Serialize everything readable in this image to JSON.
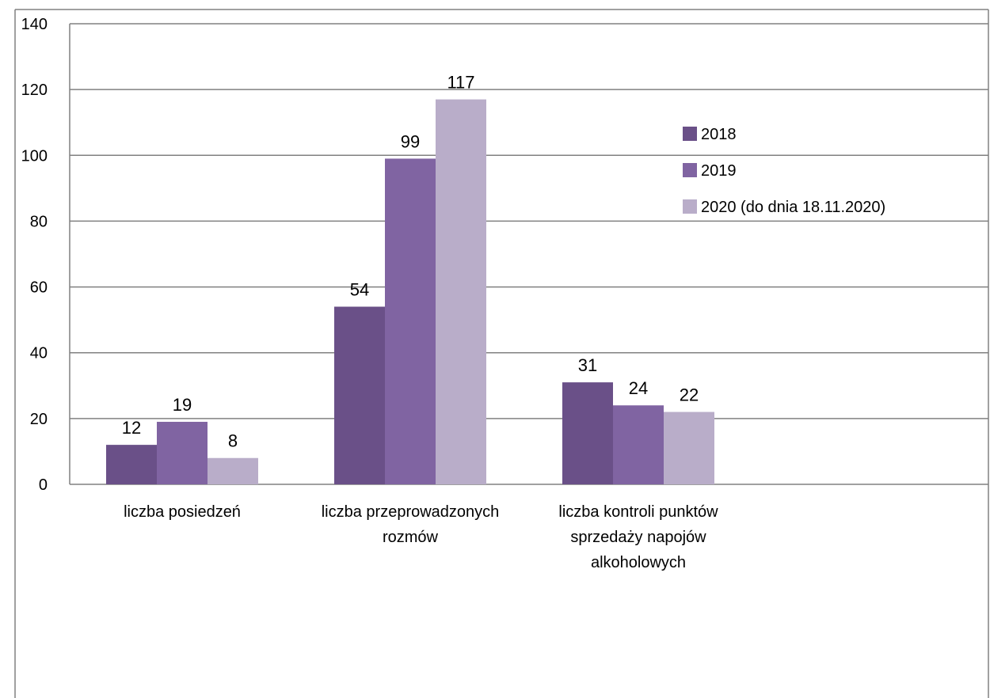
{
  "chart_data": {
    "type": "bar",
    "categories": [
      [
        "liczba posiedzeń"
      ],
      [
        "liczba przeprowadzonych",
        "rozmów"
      ],
      [
        "liczba kontroli punktów",
        "sprzedaży napojów",
        "alkoholowych"
      ]
    ],
    "series": [
      {
        "name": "2018",
        "values": [
          12,
          54,
          31
        ],
        "color": "#6a5088"
      },
      {
        "name": "2019",
        "values": [
          19,
          99,
          24
        ],
        "color": "#8064a2"
      },
      {
        "name": "2020 (do dnia 18.11.2020)",
        "values": [
          8,
          117,
          22
        ],
        "color": "#b9adc9"
      }
    ],
    "yticks": [
      0,
      20,
      40,
      60,
      80,
      100,
      120,
      140
    ],
    "ylim": [
      0,
      140
    ],
    "grid": true,
    "legend": "right"
  }
}
